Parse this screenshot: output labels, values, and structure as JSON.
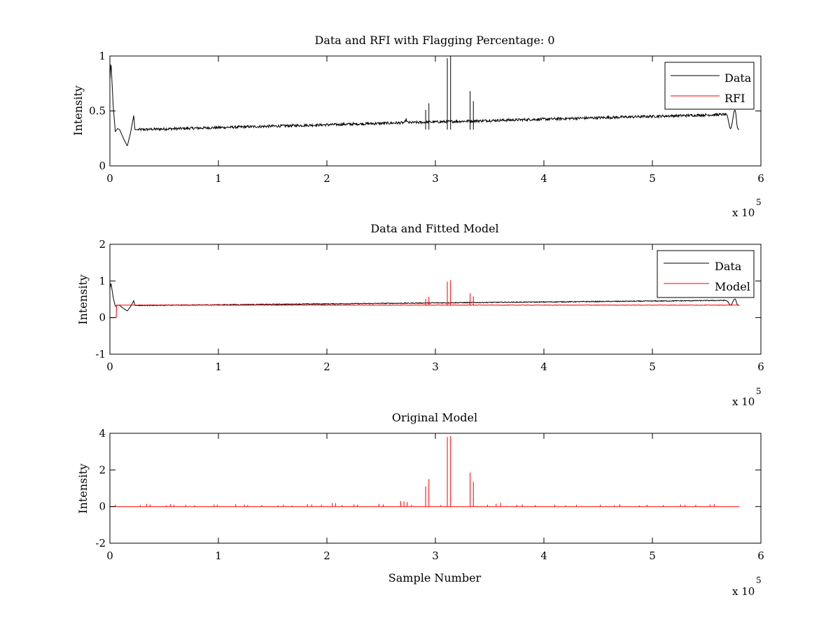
{
  "chart_data": [
    {
      "type": "line",
      "title": "Data and RFI with Flagging Percentage: 0",
      "xlabel": "",
      "ylabel": "Intensity",
      "xlim": [
        0,
        600000
      ],
      "ylim": [
        0,
        1
      ],
      "xticks": [
        0,
        1,
        2,
        3,
        4,
        5,
        6
      ],
      "yticks": [
        0,
        0.5,
        1
      ],
      "x_multiplier": {
        "base": "x 10",
        "exponent": "5"
      },
      "legend": {
        "position": "top-right",
        "entries": [
          "Data",
          "RFI"
        ]
      },
      "grid": false,
      "series": [
        {
          "name": "Data",
          "color": "#000000",
          "baseline": 0.33,
          "noise": 0.012,
          "x": [
            0,
            1000,
            3000,
            5000,
            7000,
            9000,
            12000,
            16000,
            19000,
            22000,
            23000,
            26000,
            575000,
            578000,
            580000
          ],
          "y": [
            0.78,
            0.95,
            0.55,
            0.31,
            0.34,
            0.33,
            0.26,
            0.18,
            0.3,
            0.46,
            0.33,
            0.33,
            0.47,
            0.33,
            0.33
          ],
          "events": [
            {
              "type": "bump",
              "center": 572000,
              "width": 2200,
              "amp": -0.13
            },
            {
              "type": "bump",
              "center": 576500,
              "width": 1500,
              "amp": 0.1
            },
            {
              "type": "bump",
              "center": 273000,
              "width": 800,
              "amp": 0.03
            }
          ],
          "spikes": [
            {
              "x": 291000,
              "y": 0.51
            },
            {
              "x": 294000,
              "y": 0.57
            },
            {
              "x": 311000,
              "y": 0.98
            },
            {
              "x": 314000,
              "y": 1.0
            },
            {
              "x": 332000,
              "y": 0.68
            },
            {
              "x": 335000,
              "y": 0.59
            }
          ]
        },
        {
          "name": "RFI",
          "color": "#ff0000",
          "x": [],
          "y": []
        }
      ]
    },
    {
      "type": "line",
      "title": "Data and Fitted Model",
      "xlabel": "",
      "ylabel": "Intensity",
      "xlim": [
        0,
        600000
      ],
      "ylim": [
        -1,
        2
      ],
      "xticks": [
        0,
        1,
        2,
        3,
        4,
        5,
        6
      ],
      "yticks": [
        -1,
        0,
        1,
        2
      ],
      "x_multiplier": {
        "base": "x 10",
        "exponent": "5"
      },
      "legend": {
        "position": "top-right",
        "entries": [
          "Data",
          "Model"
        ]
      },
      "grid": false,
      "series": [
        {
          "name": "Data",
          "color": "#000000",
          "baseline": 0.33,
          "noise": 0.012,
          "x": [
            0,
            1000,
            3000,
            5000,
            7000,
            9000,
            12000,
            16000,
            19000,
            22000,
            23000,
            26000,
            575000,
            578000,
            580000
          ],
          "y": [
            0.78,
            0.95,
            0.55,
            0.31,
            0.34,
            0.33,
            0.26,
            0.18,
            0.3,
            0.46,
            0.33,
            0.33,
            0.47,
            0.33,
            0.33
          ],
          "events": [
            {
              "type": "bump",
              "center": 572000,
              "width": 2200,
              "amp": -0.13
            },
            {
              "type": "bump",
              "center": 576500,
              "width": 1500,
              "amp": 0.1
            }
          ],
          "spikes": []
        },
        {
          "name": "Model",
          "color": "#ff0000",
          "baseline": 0.34,
          "noise": 0.006,
          "x": [
            0,
            6000,
            6200,
            8000,
            575000,
            580000
          ],
          "y": [
            0.0,
            0.0,
            0.34,
            0.34,
            0.34,
            0.34
          ],
          "events": [],
          "spikes": [
            {
              "x": 291000,
              "y": 0.51
            },
            {
              "x": 294000,
              "y": 0.57
            },
            {
              "x": 311000,
              "y": 0.98
            },
            {
              "x": 314000,
              "y": 1.02
            },
            {
              "x": 332000,
              "y": 0.66
            },
            {
              "x": 335000,
              "y": 0.58
            }
          ]
        }
      ]
    },
    {
      "type": "line",
      "title": "Original Model",
      "xlabel": "Sample Number",
      "ylabel": "Intensity",
      "xlim": [
        0,
        600000
      ],
      "ylim": [
        -2,
        4
      ],
      "xticks": [
        0,
        1,
        2,
        3,
        4,
        5,
        6
      ],
      "yticks": [
        -2,
        0,
        2,
        4
      ],
      "x_multiplier": {
        "base": "x 10",
        "exponent": "5"
      },
      "legend": null,
      "grid": false,
      "series": [
        {
          "name": "",
          "color": "#ff0000",
          "baseline": 0.0,
          "noise": 0.0,
          "x": [
            0,
            580000
          ],
          "y": [
            0,
            0
          ],
          "events": [],
          "small_spikes": [
            5000,
            28000,
            34000,
            37000,
            52000,
            56000,
            59000,
            70000,
            78000,
            96000,
            99000,
            116000,
            124000,
            127000,
            140000,
            155000,
            160000,
            168000,
            182000,
            186000,
            195000,
            205000,
            208000,
            214000,
            225000,
            228000,
            248000,
            252000,
            268000,
            271000,
            274000,
            278000,
            305000,
            348000,
            356000,
            360000,
            375000,
            380000,
            392000,
            410000,
            420000,
            430000,
            452000,
            465000,
            470000,
            488000,
            495000,
            510000,
            526000,
            530000,
            540000,
            553000,
            557000
          ],
          "small_spike_heights": [
            0.1,
            0.08,
            0.15,
            0.12,
            0.06,
            0.14,
            0.1,
            0.09,
            0.07,
            0.12,
            0.1,
            0.13,
            0.11,
            0.08,
            0.09,
            0.07,
            0.1,
            0.06,
            0.14,
            0.12,
            0.1,
            0.2,
            0.18,
            0.09,
            0.12,
            0.1,
            0.15,
            0.12,
            0.3,
            0.28,
            0.25,
            0.1,
            0.08,
            0.1,
            0.15,
            0.2,
            0.1,
            0.12,
            0.08,
            0.1,
            0.07,
            0.09,
            0.1,
            0.08,
            0.12,
            0.06,
            0.1,
            0.08,
            0.12,
            0.1,
            0.09,
            0.12,
            0.14
          ],
          "spikes": [
            {
              "x": 291000,
              "y": 1.1
            },
            {
              "x": 294000,
              "y": 1.5
            },
            {
              "x": 311000,
              "y": 3.8
            },
            {
              "x": 314000,
              "y": 3.85
            },
            {
              "x": 332000,
              "y": 1.85
            },
            {
              "x": 335000,
              "y": 1.35
            }
          ]
        }
      ]
    }
  ]
}
